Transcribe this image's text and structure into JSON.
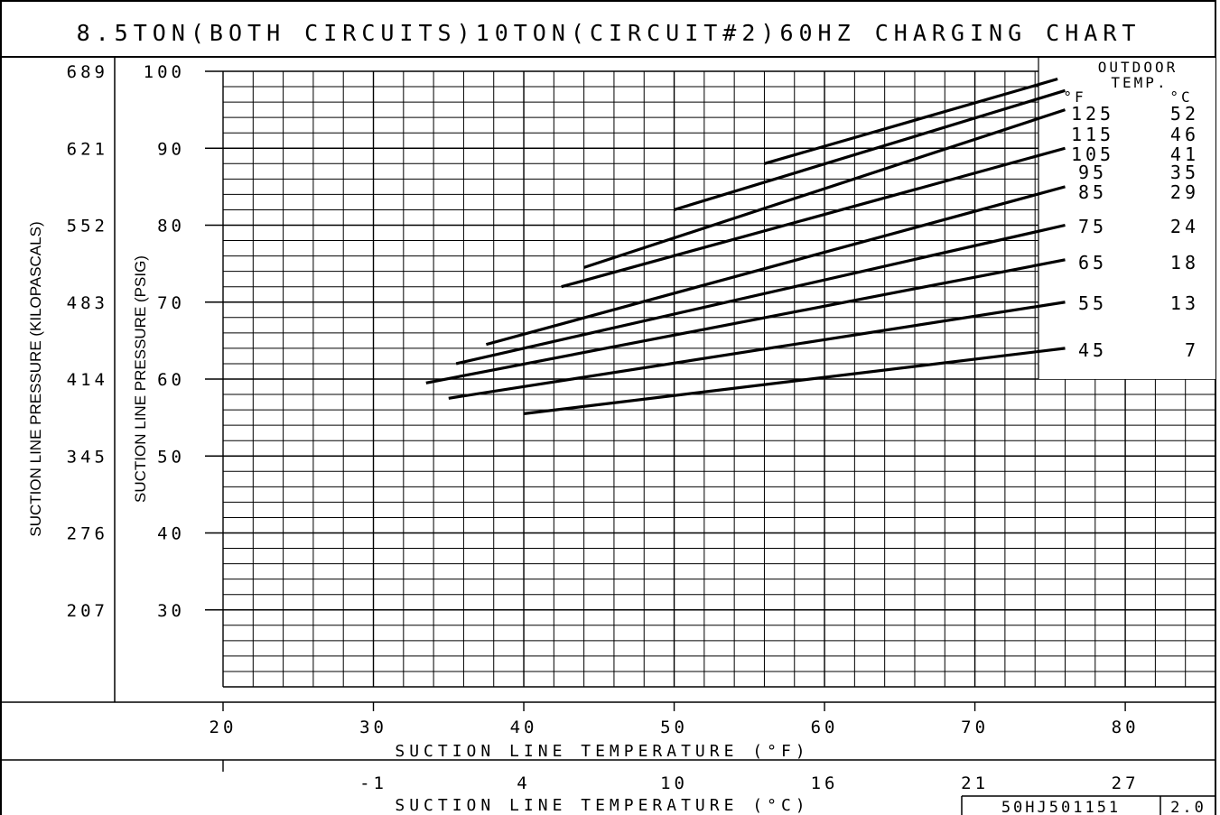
{
  "chart_data": {
    "type": "line",
    "title": "8.5TON(BOTH CIRCUITS)10TON(CIRCUIT#2)60HZ CHARGING CHART",
    "xlabel": "SUCTION LINE TEMPERATURE (°F)",
    "xlabel_c": "SUCTION LINE TEMPERATURE (°C)",
    "ylabel": "SUCTION LINE PRESSURE (PSIG)",
    "ylabel_kpa": "SUCTION LINE PRESSURE (KILOPASCALS)",
    "xlim": [
      20,
      86
    ],
    "ylim": [
      20,
      100
    ],
    "grid": true,
    "x_ticks": [
      "20",
      "30",
      "40",
      "50",
      "60",
      "70",
      "80"
    ],
    "x_ticks_c": [
      {
        "label": "-1",
        "f": 30
      },
      {
        "label": "4",
        "f": 40
      },
      {
        "label": "10",
        "f": 50
      },
      {
        "label": "16",
        "f": 60
      },
      {
        "label": "21",
        "f": 70
      },
      {
        "label": "27",
        "f": 80
      }
    ],
    "y_ticks": [
      "100",
      "90",
      "80",
      "70",
      "60",
      "50",
      "40",
      "30"
    ],
    "y_ticks_kpa": [
      "689",
      "621",
      "552",
      "483",
      "414",
      "345",
      "276",
      "207"
    ],
    "legend_title": [
      "OUTDOOR",
      "TEMP."
    ],
    "legend_units": {
      "f": "°F",
      "c": "°C"
    },
    "series": [
      {
        "name": "125",
        "celsius": "52",
        "x": [
          56,
          75.5
        ],
        "y": [
          88,
          99
        ]
      },
      {
        "name": "115",
        "celsius": "46",
        "x": [
          50,
          76
        ],
        "y": [
          82,
          97.5
        ]
      },
      {
        "name": "105",
        "celsius": "41",
        "x": [
          44,
          76
        ],
        "y": [
          74.5,
          95
        ]
      },
      {
        "name": "95",
        "celsius": "35",
        "x": [
          42.5,
          76
        ],
        "y": [
          72,
          90
        ]
      },
      {
        "name": "85",
        "celsius": "29",
        "x": [
          37.5,
          76
        ],
        "y": [
          64.5,
          85
        ]
      },
      {
        "name": "75",
        "celsius": "24",
        "x": [
          35.5,
          76
        ],
        "y": [
          62,
          80
        ]
      },
      {
        "name": "65",
        "celsius": "18",
        "x": [
          33.5,
          76
        ],
        "y": [
          59.5,
          75.5
        ]
      },
      {
        "name": "55",
        "celsius": "13",
        "x": [
          35,
          76
        ],
        "y": [
          57.5,
          70
        ]
      },
      {
        "name": "45",
        "celsius": "7",
        "x": [
          40,
          76
        ],
        "y": [
          55.5,
          64
        ]
      }
    ],
    "drawing_code": "50HJ501151",
    "revision": "2.0"
  }
}
